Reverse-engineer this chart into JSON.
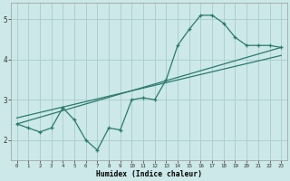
{
  "xlabel": "Humidex (Indice chaleur)",
  "bg_color": "#cce8e8",
  "grid_color": "#aacccc",
  "line_color": "#2a7a6e",
  "x_data": [
    0,
    1,
    2,
    3,
    4,
    5,
    6,
    7,
    8,
    9,
    10,
    11,
    12,
    13,
    14,
    15,
    16,
    17,
    18,
    19,
    20,
    21,
    22,
    23
  ],
  "y_jagged": [
    2.4,
    2.3,
    2.2,
    2.3,
    2.8,
    2.5,
    2.0,
    1.75,
    2.3,
    2.25,
    3.0,
    3.05,
    3.0,
    3.5,
    4.35,
    4.75,
    5.1,
    5.1,
    4.9,
    4.55,
    4.35,
    4.35,
    4.35,
    4.3
  ],
  "trend1_x": [
    0,
    23
  ],
  "trend1_y": [
    2.4,
    4.3
  ],
  "trend2_x": [
    0,
    23
  ],
  "trend2_y": [
    2.55,
    4.1
  ],
  "xlim": [
    -0.5,
    23.5
  ],
  "ylim": [
    1.5,
    5.4
  ],
  "yticks": [
    2,
    3,
    4,
    5
  ],
  "xticks": [
    0,
    1,
    2,
    3,
    4,
    5,
    6,
    7,
    8,
    9,
    10,
    11,
    12,
    13,
    14,
    15,
    16,
    17,
    18,
    19,
    20,
    21,
    22,
    23
  ]
}
